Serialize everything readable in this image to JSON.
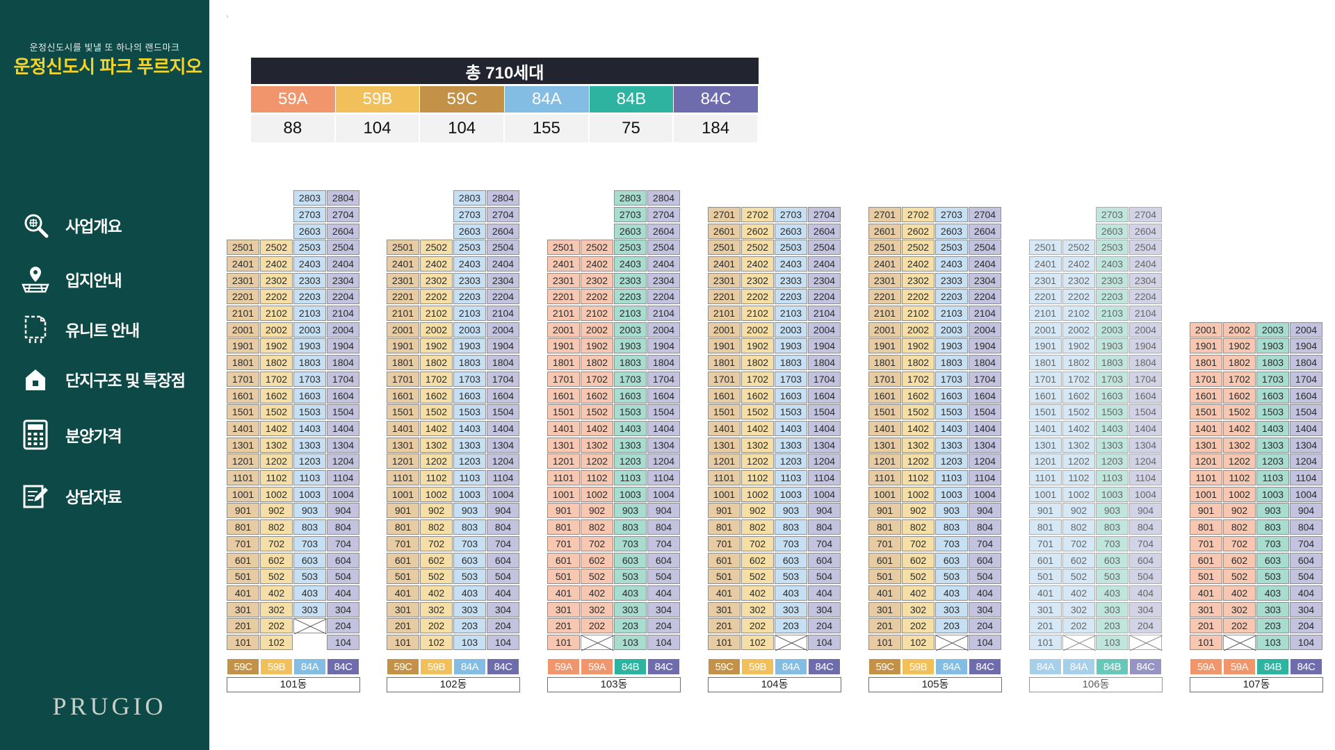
{
  "sidebar": {
    "subtitle": "운정신도시를 빛낼 또 하나의 랜드마크",
    "title": "운정신도시 파크 푸르지오",
    "items": [
      {
        "label": "사업개요",
        "icon": "search-icon"
      },
      {
        "label": "입지안내",
        "icon": "location-icon"
      },
      {
        "label": "유니트 안내",
        "icon": "floorplan-icon"
      },
      {
        "label": "단지구조 및 특장점",
        "icon": "house-icon"
      },
      {
        "label": "분양가격",
        "icon": "calculator-icon"
      },
      {
        "label": "상담자료",
        "icon": "document-edit-icon"
      }
    ],
    "brand": "PRUGIO"
  },
  "breadcrumb": "›",
  "summary": {
    "total": "총 710세대",
    "types": [
      {
        "label": "59A",
        "count": "88",
        "color": "#f0956c"
      },
      {
        "label": "59B",
        "count": "104",
        "color": "#f2c05a"
      },
      {
        "label": "59C",
        "count": "104",
        "color": "#c39147"
      },
      {
        "label": "84A",
        "count": "155",
        "color": "#84bde3"
      },
      {
        "label": "84B",
        "count": "75",
        "color": "#2db3a0"
      },
      {
        "label": "84C",
        "count": "184",
        "color": "#6e6cad"
      }
    ]
  },
  "type_colors": {
    "59A": {
      "cell": "#f7c7b1",
      "legend": "#f0956c"
    },
    "59B": {
      "cell": "#f5dfa6",
      "legend": "#f2c05a"
    },
    "59C": {
      "cell": "#e6cba3",
      "legend": "#c39147"
    },
    "84A": {
      "cell": "#c7dff2",
      "legend": "#84bde3"
    },
    "84B": {
      "cell": "#a8dccf",
      "legend": "#2db3a0"
    },
    "84C": {
      "cell": "#c3c3e0",
      "legend": "#6e6cad"
    }
  },
  "buildings": [
    {
      "name": "101동",
      "types": [
        "59C",
        "59B",
        "84A",
        "84C"
      ],
      "lines": [
        [
          1,
          25
        ],
        [
          1,
          25
        ],
        [
          2,
          28
        ],
        [
          1,
          28
        ]
      ],
      "vacant": [
        "203"
      ],
      "faded": false
    },
    {
      "name": "102동",
      "types": [
        "59C",
        "59B",
        "84A",
        "84C"
      ],
      "lines": [
        [
          1,
          25
        ],
        [
          1,
          25
        ],
        [
          1,
          28
        ],
        [
          1,
          28
        ]
      ],
      "vacant": [],
      "faded": false
    },
    {
      "name": "103동",
      "types": [
        "59A",
        "59A",
        "84B",
        "84C"
      ],
      "lines": [
        [
          1,
          25
        ],
        [
          2,
          25
        ],
        [
          1,
          28
        ],
        [
          1,
          28
        ]
      ],
      "vacant": [
        "102"
      ],
      "faded": false
    },
    {
      "name": "104동",
      "types": [
        "59C",
        "59B",
        "84A",
        "84C"
      ],
      "lines": [
        [
          1,
          27
        ],
        [
          1,
          27
        ],
        [
          2,
          27
        ],
        [
          1,
          27
        ]
      ],
      "vacant": [
        "103"
      ],
      "faded": false
    },
    {
      "name": "105동",
      "types": [
        "59C",
        "59B",
        "84A",
        "84C"
      ],
      "lines": [
        [
          1,
          27
        ],
        [
          1,
          27
        ],
        [
          2,
          27
        ],
        [
          1,
          27
        ]
      ],
      "vacant": [
        "103"
      ],
      "faded": false
    },
    {
      "name": "106동",
      "types": [
        "84A",
        "84A",
        "84B",
        "84C"
      ],
      "lines": [
        [
          1,
          25
        ],
        [
          2,
          25
        ],
        [
          1,
          27
        ],
        [
          2,
          27
        ]
      ],
      "vacant": [
        "102",
        "104"
      ],
      "faded": true
    },
    {
      "name": "107동",
      "types": [
        "59A",
        "59A",
        "84B",
        "84C"
      ],
      "lines": [
        [
          1,
          20
        ],
        [
          1,
          20
        ],
        [
          1,
          20
        ],
        [
          1,
          20
        ]
      ],
      "vacant": [
        "102"
      ],
      "faded": false
    }
  ]
}
